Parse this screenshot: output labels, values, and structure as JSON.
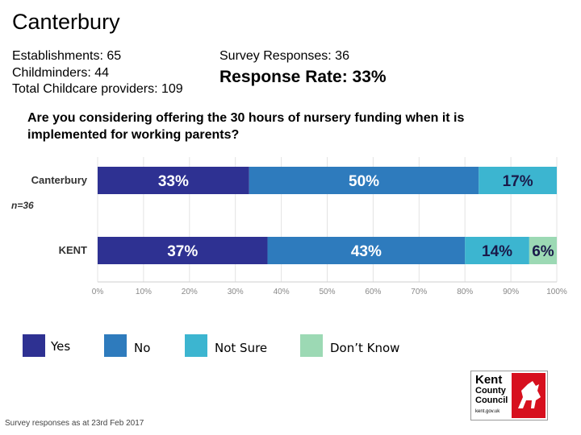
{
  "header": {
    "title": "Canterbury",
    "establishments": "Establishments: 65",
    "childminders": "Childminders: 44",
    "total_providers": "Total Childcare providers: 109",
    "survey_responses": "Survey Responses: 36",
    "response_rate": "Response Rate: 33%"
  },
  "question": "Are you considering offering the 30 hours of nursery funding when it is implemented for working parents?",
  "chart_data": {
    "type": "bar",
    "orientation": "horizontal",
    "stacked": true,
    "categories": [
      "Canterbury",
      "KENT"
    ],
    "annotation": "n=36",
    "series": [
      {
        "name": "Yes",
        "values": [
          33,
          37
        ],
        "labels": [
          "33%",
          "37%"
        ],
        "color": "#2e3192"
      },
      {
        "name": "No",
        "values": [
          50,
          43
        ],
        "labels": [
          "50%",
          "43%"
        ],
        "color": "#2e7bbd"
      },
      {
        "name": "Not Sure",
        "values": [
          17,
          14
        ],
        "labels": [
          "17%",
          "14%"
        ],
        "color": "#3cb5d0"
      },
      {
        "name": "Don’t Know",
        "values": [
          0,
          6
        ],
        "labels": [
          "",
          "6%"
        ],
        "color": "#9cd9b4"
      }
    ],
    "xlim": [
      0,
      100
    ],
    "xticks": [
      "0%",
      "10%",
      "20%",
      "30%",
      "40%",
      "50%",
      "60%",
      "70%",
      "80%",
      "90%",
      "100%"
    ],
    "grid": true,
    "legend_position": "bottom"
  },
  "footnote": "Survey responses as at 23rd Feb 2017",
  "logo": {
    "line1": "Kent",
    "line2": "County",
    "line3": "Council",
    "url": "kent.gov.uk"
  }
}
